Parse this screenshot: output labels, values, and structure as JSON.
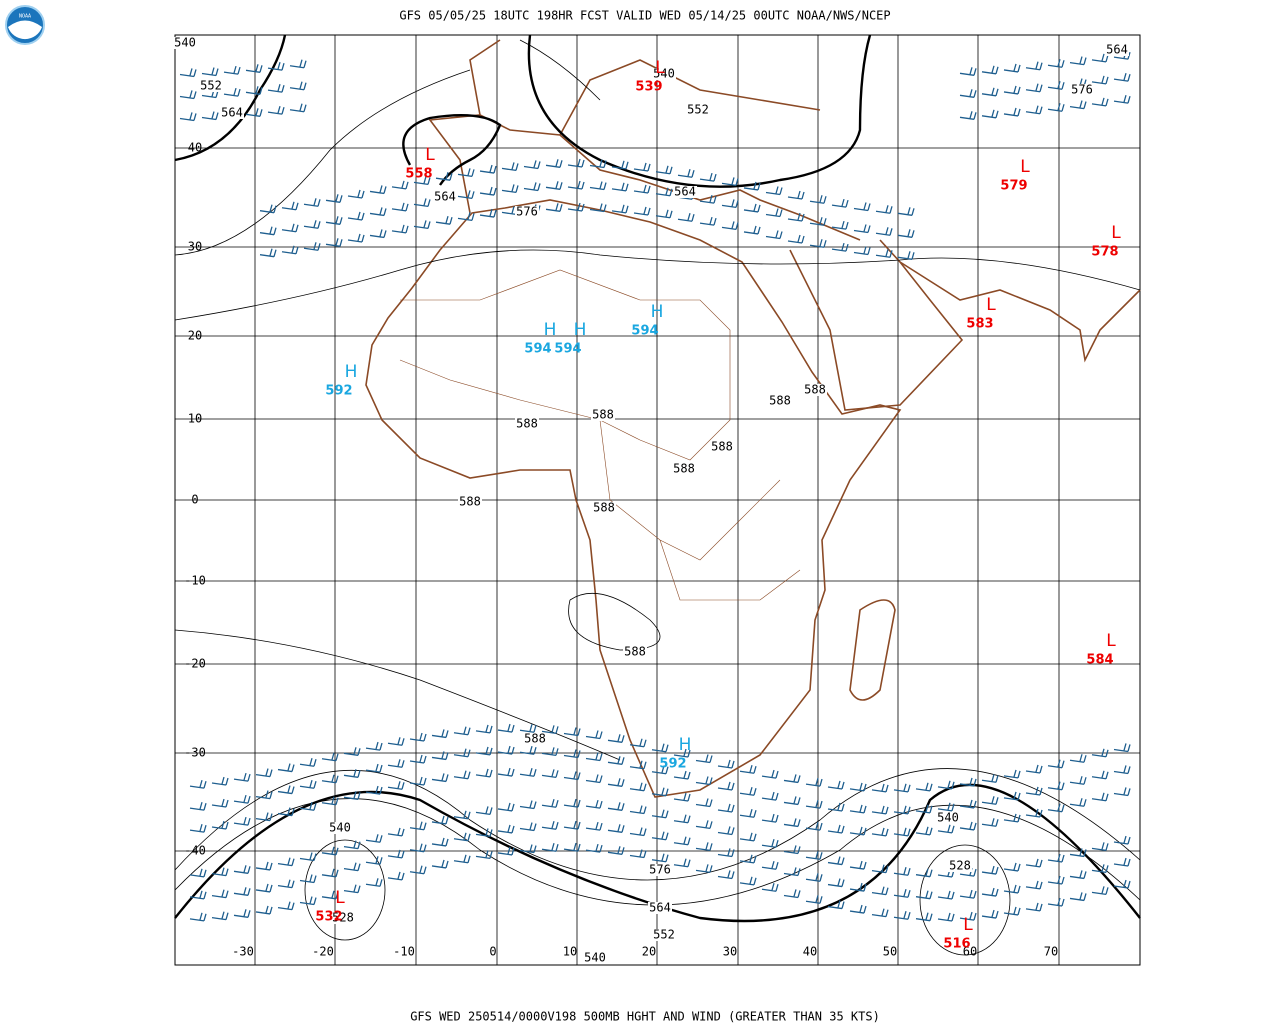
{
  "header": {
    "title": "GFS 05/05/25 18UTC 198HR FCST VALID WED 05/14/25 00UTC NOAA/NWS/NCEP"
  },
  "footer": {
    "caption": "GFS WED 250514/0000V198 500MB HGHT AND WIND (GREATER THAN 35 KTS)"
  },
  "grid": {
    "lat_labels": [
      "40",
      "30",
      "20",
      "10",
      "0",
      "-10",
      "-20",
      "-30",
      "-40"
    ],
    "lon_labels": [
      "-30",
      "-20",
      "-10",
      "0",
      "10",
      "20",
      "30",
      "40",
      "50",
      "60",
      "70"
    ]
  },
  "contour_labels": [
    "540",
    "552",
    "564",
    "564",
    "576",
    "540",
    "552",
    "564",
    "564",
    "576",
    "588",
    "588",
    "588",
    "588",
    "588",
    "588",
    "588",
    "588",
    "588",
    "588",
    "540",
    "528",
    "576",
    "564",
    "552",
    "540",
    "540",
    "528"
  ],
  "highs": [
    {
      "symbol": "H",
      "value": "594"
    },
    {
      "symbol": "H",
      "value": "594"
    },
    {
      "symbol": "H",
      "value": "594"
    },
    {
      "symbol": "H",
      "value": "592"
    },
    {
      "symbol": "H",
      "value": "592"
    }
  ],
  "lows": [
    {
      "symbol": "L",
      "value": "539"
    },
    {
      "symbol": "L",
      "value": "558"
    },
    {
      "symbol": "L",
      "value": "579"
    },
    {
      "symbol": "L",
      "value": "578"
    },
    {
      "symbol": "L",
      "value": "583"
    },
    {
      "symbol": "L",
      "value": "584"
    },
    {
      "symbol": "L",
      "value": "532"
    },
    {
      "symbol": "L",
      "value": "516"
    }
  ]
}
